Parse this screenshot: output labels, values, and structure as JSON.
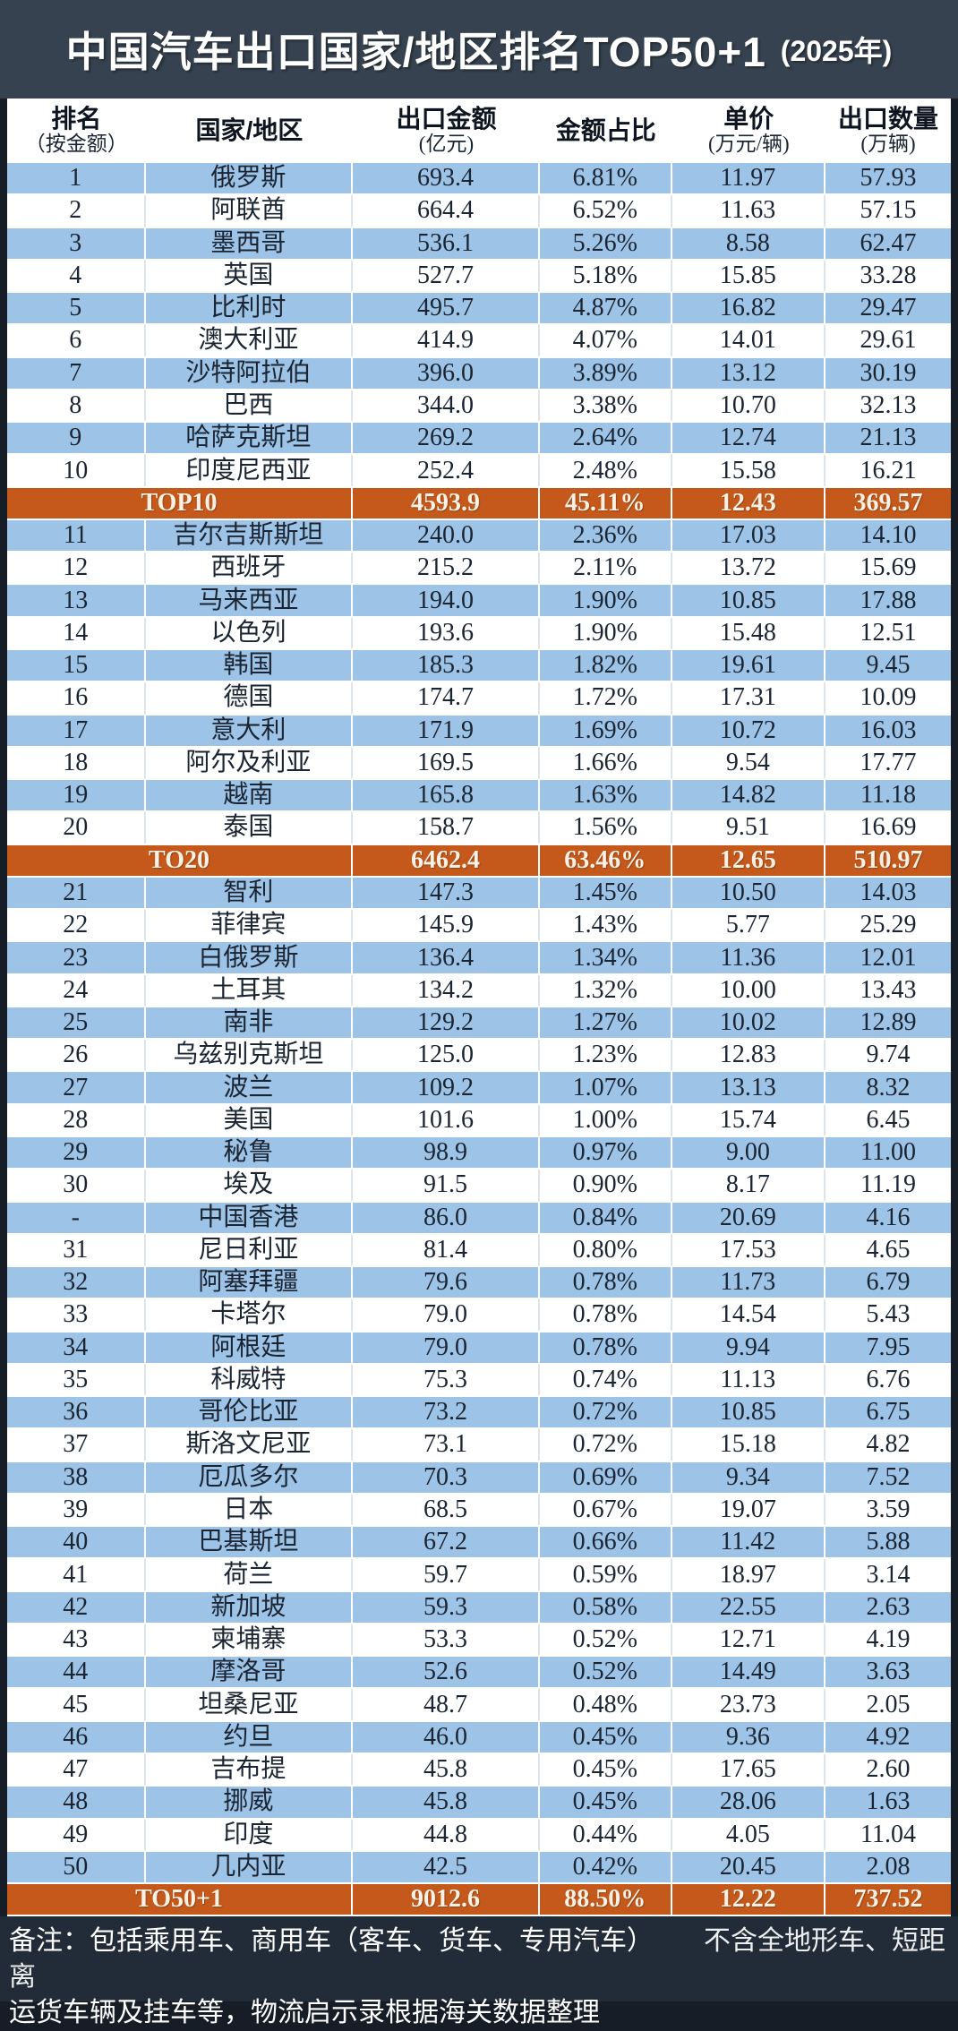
{
  "title": {
    "main": "中国汽车出口国家/地区排名TOP50+1",
    "suffix": "(2025年)"
  },
  "footer": {
    "note_line1_left": "备注：包括乘用车、商用车（客车、货车、专用汽车）",
    "note_line1_right": "不含全地形车、短距离",
    "note_line2": "运货车辆及挂车等，物流启示录根据海关数据整理"
  },
  "colors": {
    "blue_row": "#9DC3E6",
    "orange_row": "#C4591B",
    "title_band": "#36424F",
    "frame": "#161D27",
    "footer_band": "#222C39",
    "body_text": "#1B2433",
    "summary_text": "#FCF1E4"
  },
  "chart_data": {
    "type": "table",
    "title": "中国汽车出口国家/地区排名TOP50+1 (2025年)",
    "columns": [
      {
        "line1": "排名",
        "line2": "（按金额）"
      },
      {
        "line1": "国家/地区",
        "line2": ""
      },
      {
        "line1": "出口金额",
        "line2": "(亿元)"
      },
      {
        "line1": "金额占比",
        "line2": ""
      },
      {
        "line1": "单价",
        "line2": "(万元/辆)"
      },
      {
        "line1": "出口数量",
        "line2": "(万辆)"
      }
    ],
    "rows": [
      {
        "kind": "data",
        "rank": "1",
        "country": "俄罗斯",
        "amount": "693.4",
        "share": "6.81%",
        "unit_price": "11.97",
        "quantity": "57.93"
      },
      {
        "kind": "data",
        "rank": "2",
        "country": "阿联酋",
        "amount": "664.4",
        "share": "6.52%",
        "unit_price": "11.63",
        "quantity": "57.15"
      },
      {
        "kind": "data",
        "rank": "3",
        "country": "墨西哥",
        "amount": "536.1",
        "share": "5.26%",
        "unit_price": "8.58",
        "quantity": "62.47"
      },
      {
        "kind": "data",
        "rank": "4",
        "country": "英国",
        "amount": "527.7",
        "share": "5.18%",
        "unit_price": "15.85",
        "quantity": "33.28"
      },
      {
        "kind": "data",
        "rank": "5",
        "country": "比利时",
        "amount": "495.7",
        "share": "4.87%",
        "unit_price": "16.82",
        "quantity": "29.47"
      },
      {
        "kind": "data",
        "rank": "6",
        "country": "澳大利亚",
        "amount": "414.9",
        "share": "4.07%",
        "unit_price": "14.01",
        "quantity": "29.61"
      },
      {
        "kind": "data",
        "rank": "7",
        "country": "沙特阿拉伯",
        "amount": "396.0",
        "share": "3.89%",
        "unit_price": "13.12",
        "quantity": "30.19"
      },
      {
        "kind": "data",
        "rank": "8",
        "country": "巴西",
        "amount": "344.0",
        "share": "3.38%",
        "unit_price": "10.70",
        "quantity": "32.13"
      },
      {
        "kind": "data",
        "rank": "9",
        "country": "哈萨克斯坦",
        "amount": "269.2",
        "share": "2.64%",
        "unit_price": "12.74",
        "quantity": "21.13"
      },
      {
        "kind": "data",
        "rank": "10",
        "country": "印度尼西亚",
        "amount": "252.4",
        "share": "2.48%",
        "unit_price": "15.58",
        "quantity": "16.21"
      },
      {
        "kind": "summary",
        "label": "TOP10",
        "amount": "4593.9",
        "share": "45.11%",
        "unit_price": "12.43",
        "quantity": "369.57"
      },
      {
        "kind": "data",
        "rank": "11",
        "country": "吉尔吉斯斯坦",
        "amount": "240.0",
        "share": "2.36%",
        "unit_price": "17.03",
        "quantity": "14.10"
      },
      {
        "kind": "data",
        "rank": "12",
        "country": "西班牙",
        "amount": "215.2",
        "share": "2.11%",
        "unit_price": "13.72",
        "quantity": "15.69"
      },
      {
        "kind": "data",
        "rank": "13",
        "country": "马来西亚",
        "amount": "194.0",
        "share": "1.90%",
        "unit_price": "10.85",
        "quantity": "17.88"
      },
      {
        "kind": "data",
        "rank": "14",
        "country": "以色列",
        "amount": "193.6",
        "share": "1.90%",
        "unit_price": "15.48",
        "quantity": "12.51"
      },
      {
        "kind": "data",
        "rank": "15",
        "country": "韩国",
        "amount": "185.3",
        "share": "1.82%",
        "unit_price": "19.61",
        "quantity": "9.45"
      },
      {
        "kind": "data",
        "rank": "16",
        "country": "德国",
        "amount": "174.7",
        "share": "1.72%",
        "unit_price": "17.31",
        "quantity": "10.09"
      },
      {
        "kind": "data",
        "rank": "17",
        "country": "意大利",
        "amount": "171.9",
        "share": "1.69%",
        "unit_price": "10.72",
        "quantity": "16.03"
      },
      {
        "kind": "data",
        "rank": "18",
        "country": "阿尔及利亚",
        "amount": "169.5",
        "share": "1.66%",
        "unit_price": "9.54",
        "quantity": "17.77"
      },
      {
        "kind": "data",
        "rank": "19",
        "country": "越南",
        "amount": "165.8",
        "share": "1.63%",
        "unit_price": "14.82",
        "quantity": "11.18"
      },
      {
        "kind": "data",
        "rank": "20",
        "country": "泰国",
        "amount": "158.7",
        "share": "1.56%",
        "unit_price": "9.51",
        "quantity": "16.69"
      },
      {
        "kind": "summary",
        "label": "TO20",
        "amount": "6462.4",
        "share": "63.46%",
        "unit_price": "12.65",
        "quantity": "510.97"
      },
      {
        "kind": "data",
        "rank": "21",
        "country": "智利",
        "amount": "147.3",
        "share": "1.45%",
        "unit_price": "10.50",
        "quantity": "14.03"
      },
      {
        "kind": "data",
        "rank": "22",
        "country": "菲律宾",
        "amount": "145.9",
        "share": "1.43%",
        "unit_price": "5.77",
        "quantity": "25.29"
      },
      {
        "kind": "data",
        "rank": "23",
        "country": "白俄罗斯",
        "amount": "136.4",
        "share": "1.34%",
        "unit_price": "11.36",
        "quantity": "12.01"
      },
      {
        "kind": "data",
        "rank": "24",
        "country": "土耳其",
        "amount": "134.2",
        "share": "1.32%",
        "unit_price": "10.00",
        "quantity": "13.43"
      },
      {
        "kind": "data",
        "rank": "25",
        "country": "南非",
        "amount": "129.2",
        "share": "1.27%",
        "unit_price": "10.02",
        "quantity": "12.89"
      },
      {
        "kind": "data",
        "rank": "26",
        "country": "乌兹别克斯坦",
        "amount": "125.0",
        "share": "1.23%",
        "unit_price": "12.83",
        "quantity": "9.74"
      },
      {
        "kind": "data",
        "rank": "27",
        "country": "波兰",
        "amount": "109.2",
        "share": "1.07%",
        "unit_price": "13.13",
        "quantity": "8.32"
      },
      {
        "kind": "data",
        "rank": "28",
        "country": "美国",
        "amount": "101.6",
        "share": "1.00%",
        "unit_price": "15.74",
        "quantity": "6.45"
      },
      {
        "kind": "data",
        "rank": "29",
        "country": "秘鲁",
        "amount": "98.9",
        "share": "0.97%",
        "unit_price": "9.00",
        "quantity": "11.00"
      },
      {
        "kind": "data",
        "rank": "30",
        "country": "埃及",
        "amount": "91.5",
        "share": "0.90%",
        "unit_price": "8.17",
        "quantity": "11.19"
      },
      {
        "kind": "data",
        "rank": "-",
        "country": "中国香港",
        "amount": "86.0",
        "share": "0.84%",
        "unit_price": "20.69",
        "quantity": "4.16"
      },
      {
        "kind": "data",
        "rank": "31",
        "country": "尼日利亚",
        "amount": "81.4",
        "share": "0.80%",
        "unit_price": "17.53",
        "quantity": "4.65"
      },
      {
        "kind": "data",
        "rank": "32",
        "country": "阿塞拜疆",
        "amount": "79.6",
        "share": "0.78%",
        "unit_price": "11.73",
        "quantity": "6.79"
      },
      {
        "kind": "data",
        "rank": "33",
        "country": "卡塔尔",
        "amount": "79.0",
        "share": "0.78%",
        "unit_price": "14.54",
        "quantity": "5.43"
      },
      {
        "kind": "data",
        "rank": "34",
        "country": "阿根廷",
        "amount": "79.0",
        "share": "0.78%",
        "unit_price": "9.94",
        "quantity": "7.95"
      },
      {
        "kind": "data",
        "rank": "35",
        "country": "科威特",
        "amount": "75.3",
        "share": "0.74%",
        "unit_price": "11.13",
        "quantity": "6.76"
      },
      {
        "kind": "data",
        "rank": "36",
        "country": "哥伦比亚",
        "amount": "73.2",
        "share": "0.72%",
        "unit_price": "10.85",
        "quantity": "6.75"
      },
      {
        "kind": "data",
        "rank": "37",
        "country": "斯洛文尼亚",
        "amount": "73.1",
        "share": "0.72%",
        "unit_price": "15.18",
        "quantity": "4.82"
      },
      {
        "kind": "data",
        "rank": "38",
        "country": "厄瓜多尔",
        "amount": "70.3",
        "share": "0.69%",
        "unit_price": "9.34",
        "quantity": "7.52"
      },
      {
        "kind": "data",
        "rank": "39",
        "country": "日本",
        "amount": "68.5",
        "share": "0.67%",
        "unit_price": "19.07",
        "quantity": "3.59"
      },
      {
        "kind": "data",
        "rank": "40",
        "country": "巴基斯坦",
        "amount": "67.2",
        "share": "0.66%",
        "unit_price": "11.42",
        "quantity": "5.88"
      },
      {
        "kind": "data",
        "rank": "41",
        "country": "荷兰",
        "amount": "59.7",
        "share": "0.59%",
        "unit_price": "18.97",
        "quantity": "3.14"
      },
      {
        "kind": "data",
        "rank": "42",
        "country": "新加坡",
        "amount": "59.3",
        "share": "0.58%",
        "unit_price": "22.55",
        "quantity": "2.63"
      },
      {
        "kind": "data",
        "rank": "43",
        "country": "柬埔寨",
        "amount": "53.3",
        "share": "0.52%",
        "unit_price": "12.71",
        "quantity": "4.19"
      },
      {
        "kind": "data",
        "rank": "44",
        "country": "摩洛哥",
        "amount": "52.6",
        "share": "0.52%",
        "unit_price": "14.49",
        "quantity": "3.63"
      },
      {
        "kind": "data",
        "rank": "45",
        "country": "坦桑尼亚",
        "amount": "48.7",
        "share": "0.48%",
        "unit_price": "23.73",
        "quantity": "2.05"
      },
      {
        "kind": "data",
        "rank": "46",
        "country": "约旦",
        "amount": "46.0",
        "share": "0.45%",
        "unit_price": "9.36",
        "quantity": "4.92"
      },
      {
        "kind": "data",
        "rank": "47",
        "country": "吉布提",
        "amount": "45.8",
        "share": "0.45%",
        "unit_price": "17.65",
        "quantity": "2.60"
      },
      {
        "kind": "data",
        "rank": "48",
        "country": "挪威",
        "amount": "45.8",
        "share": "0.45%",
        "unit_price": "28.06",
        "quantity": "1.63"
      },
      {
        "kind": "data",
        "rank": "49",
        "country": "印度",
        "amount": "44.8",
        "share": "0.44%",
        "unit_price": "4.05",
        "quantity": "11.04"
      },
      {
        "kind": "data",
        "rank": "50",
        "country": "几内亚",
        "amount": "42.5",
        "share": "0.42%",
        "unit_price": "20.45",
        "quantity": "2.08"
      },
      {
        "kind": "summary",
        "label": "TO50+1",
        "amount": "9012.6",
        "share": "88.50%",
        "unit_price": "12.22",
        "quantity": "737.52"
      }
    ]
  }
}
